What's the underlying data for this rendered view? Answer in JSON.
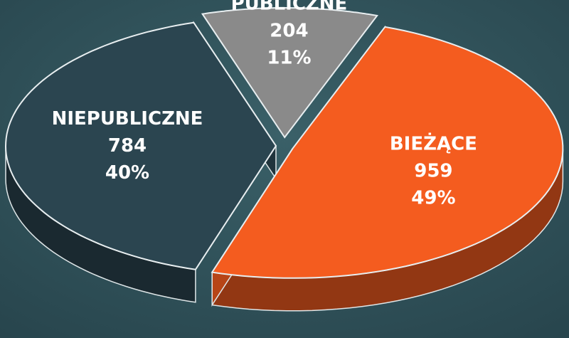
{
  "chart_data": {
    "type": "pie",
    "categories": [
      "BIEŻĄCE",
      "NIEPUBLICZNE",
      "PUBLICZNE"
    ],
    "values": [
      959,
      784,
      204
    ],
    "percent_labels": [
      "49%",
      "40%",
      "11%"
    ],
    "colors": [
      "#f45c1f",
      "#2b4550",
      "#8a8a8a"
    ]
  }
}
